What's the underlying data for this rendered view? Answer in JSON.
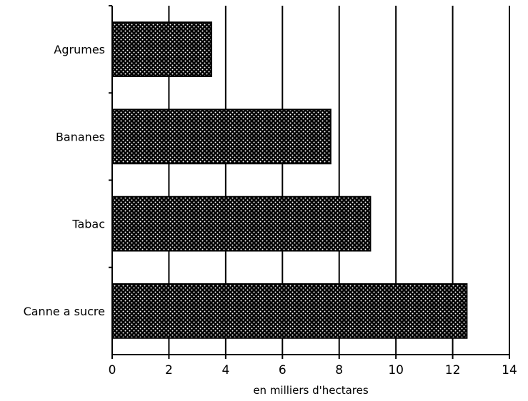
{
  "chart_data": {
    "type": "bar",
    "orientation": "horizontal",
    "categories": [
      "Agrumes",
      "Bananes",
      "Tabac",
      "Canne a sucre"
    ],
    "values": [
      3.5,
      7.7,
      9.1,
      12.5
    ],
    "title": "",
    "xlabel": "en milliers d'hectares",
    "ylabel": "",
    "xlim": [
      0,
      14
    ],
    "xticks": [
      "0",
      "2",
      "4",
      "6",
      "8",
      "10",
      "12",
      "14"
    ],
    "grid": "vertical",
    "legend": "none",
    "bar_fill": "#000000",
    "bar_pattern_dot": "#ffffff"
  }
}
